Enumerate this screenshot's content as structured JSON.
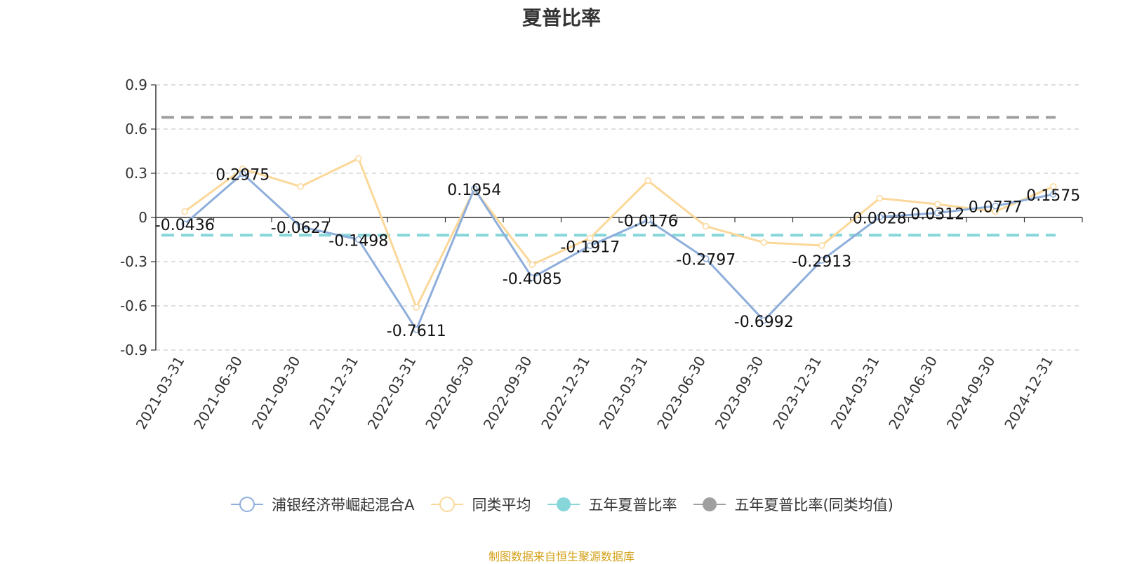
{
  "chart_data": {
    "type": "line",
    "title": "夏普比率",
    "categories": [
      "2021-03-31",
      "2021-06-30",
      "2021-09-30",
      "2021-12-31",
      "2022-03-31",
      "2022-06-30",
      "2022-09-30",
      "2022-12-31",
      "2023-03-31",
      "2023-06-30",
      "2023-09-30",
      "2023-12-31",
      "2024-03-31",
      "2024-06-30",
      "2024-09-30",
      "2024-12-31"
    ],
    "ylim": [
      -0.9,
      0.9
    ],
    "yticks": [
      "0.9",
      "0.6",
      "0.3",
      "0",
      "-0.3",
      "-0.6",
      "-0.9"
    ],
    "grid": true,
    "legend_position": "bottom",
    "series": [
      {
        "name": "浦银经济带崛起混合A",
        "color": "#8eaedb",
        "values": [
          -0.0436,
          0.2975,
          -0.0627,
          -0.1498,
          -0.7611,
          0.1954,
          -0.4085,
          -0.1917,
          -0.0176,
          -0.2797,
          -0.6992,
          -0.2913,
          0.0028,
          0.0312,
          0.0777,
          0.1575
        ],
        "labels": [
          "-0.0436",
          "0.2975",
          "-0.0627",
          "-0.1498",
          "-0.7611",
          "0.1954",
          "-0.4085",
          "-0.1917",
          "-0.0176",
          "-0.2797",
          "-0.6992",
          "-0.2913",
          "0.0028",
          "0.0312",
          "0.0777",
          "0.1575"
        ]
      },
      {
        "name": "同类平均",
        "color": "#fbd89a",
        "values": [
          0.04,
          0.33,
          0.21,
          0.4,
          -0.61,
          0.19,
          -0.32,
          -0.14,
          0.25,
          -0.06,
          -0.17,
          -0.19,
          0.13,
          0.09,
          0.04,
          0.21
        ]
      },
      {
        "name": "五年夏普比率",
        "color": "#86d6da",
        "value": -0.12
      },
      {
        "name": "五年夏普比率(同类均值)",
        "color": "#a0a0a0",
        "value": 0.68
      }
    ]
  },
  "source_note": "制图数据来自恒生聚源数据库"
}
